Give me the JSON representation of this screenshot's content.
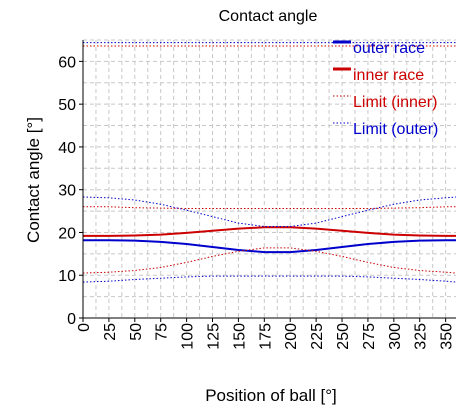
{
  "chart_data": {
    "type": "line",
    "title": "Contact angle",
    "xlabel": "Position of ball [°]",
    "ylabel": "Contact angle [°]",
    "xlim": [
      0,
      360
    ],
    "ylim": [
      0,
      65
    ],
    "xticks": [
      0,
      25,
      50,
      75,
      100,
      125,
      150,
      175,
      200,
      225,
      250,
      275,
      300,
      325,
      350
    ],
    "yticks": [
      0,
      10,
      20,
      30,
      40,
      50,
      60
    ],
    "x_tick_labels": [
      "0",
      "25",
      "50",
      "75",
      "100",
      "125",
      "150",
      "175",
      "200",
      "225",
      "250",
      "275",
      "300",
      "325",
      "350"
    ],
    "y_tick_labels": [
      "0",
      "10",
      "20",
      "30",
      "40",
      "50",
      "60"
    ],
    "grid": true,
    "legend_position": "top-right",
    "x": [
      0,
      25,
      50,
      75,
      100,
      125,
      150,
      175,
      200,
      225,
      250,
      275,
      300,
      325,
      350,
      360
    ],
    "series": [
      {
        "name": "outer race",
        "color": "#0000cc",
        "style": "solid",
        "values": [
          18.2,
          18.2,
          18.1,
          17.8,
          17.3,
          16.6,
          15.9,
          15.4,
          15.4,
          15.9,
          16.6,
          17.3,
          17.8,
          18.1,
          18.2,
          18.2
        ]
      },
      {
        "name": "inner race",
        "color": "#cc0000",
        "style": "solid",
        "values": [
          19.2,
          19.2,
          19.3,
          19.5,
          19.9,
          20.4,
          20.9,
          21.2,
          21.2,
          20.9,
          20.4,
          19.9,
          19.5,
          19.3,
          19.2,
          19.2
        ]
      },
      {
        "name": "Limit (inner)",
        "color": "#cc0000",
        "style": "dotted",
        "values": [
          63.6,
          63.6,
          63.6,
          63.6,
          63.6,
          63.6,
          63.6,
          63.6,
          63.6,
          63.6,
          63.6,
          63.6,
          63.6,
          63.6,
          63.6,
          63.6
        ]
      },
      {
        "name": "Limit (outer)",
        "color": "#0000cc",
        "style": "dotted",
        "values": [
          64.4,
          64.4,
          64.4,
          64.4,
          64.4,
          64.4,
          64.4,
          64.4,
          64.4,
          64.4,
          64.4,
          64.4,
          64.4,
          64.4,
          64.4,
          64.4
        ]
      },
      {
        "color": "#cc0000",
        "style": "dotted",
        "values": [
          26.0,
          26.0,
          25.8,
          25.7,
          25.6,
          25.6,
          25.6,
          25.6,
          25.6,
          25.6,
          25.6,
          25.6,
          25.7,
          25.8,
          26.0,
          26.0
        ]
      },
      {
        "color": "#cc0000",
        "style": "dotted",
        "values": [
          10.5,
          10.7,
          11.1,
          11.8,
          13.0,
          14.4,
          15.6,
          16.4,
          16.4,
          15.6,
          14.4,
          13.0,
          11.8,
          11.1,
          10.7,
          10.5
        ]
      },
      {
        "color": "#0000cc",
        "style": "dotted",
        "values": [
          28.3,
          28.1,
          27.6,
          26.6,
          25.2,
          23.7,
          22.2,
          21.4,
          21.4,
          22.2,
          23.7,
          25.2,
          26.6,
          27.6,
          28.1,
          28.3
        ]
      },
      {
        "color": "#0000cc",
        "style": "dotted",
        "values": [
          8.4,
          8.6,
          9.0,
          9.3,
          9.6,
          9.8,
          9.8,
          9.8,
          9.8,
          9.8,
          9.8,
          9.6,
          9.3,
          9.0,
          8.6,
          8.4
        ]
      }
    ]
  }
}
